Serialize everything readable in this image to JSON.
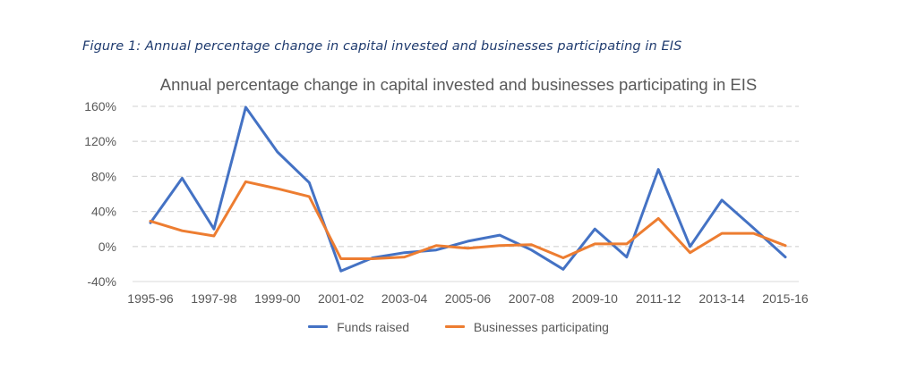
{
  "figure_caption": "Figure 1: Annual percentage change in capital invested and businesses participating in EIS",
  "chart_data": {
    "type": "line",
    "title": "Annual percentage change in capital invested and businesses participating in EIS",
    "xlabel": "",
    "ylabel": "",
    "ylim": [
      -40,
      160
    ],
    "yticks": [
      -40,
      0,
      40,
      80,
      120,
      160
    ],
    "ytick_labels": [
      "-40%",
      "0%",
      "40%",
      "80%",
      "120%",
      "160%"
    ],
    "grid": "horizontal dashed",
    "legend_position": "bottom",
    "categories": [
      "1995-96",
      "1996-97",
      "1997-98",
      "1998-99",
      "1999-00",
      "2000-01",
      "2001-02",
      "2002-03",
      "2003-04",
      "2004-05",
      "2005-06",
      "2006-07",
      "2007-08",
      "2008-09",
      "2009-10",
      "2010-11",
      "2011-12",
      "2012-13",
      "2013-14",
      "2014-15",
      "2015-16"
    ],
    "xtick_labels_shown": [
      "1995-96",
      "1997-98",
      "1999-00",
      "2001-02",
      "2003-04",
      "2005-06",
      "2007-08",
      "2009-10",
      "2011-12",
      "2013-14",
      "2015-16"
    ],
    "series": [
      {
        "name": "Funds raised",
        "color": "#4472c4",
        "values": [
          27,
          78,
          20,
          159,
          108,
          73,
          -28,
          -13,
          -7,
          -4,
          6,
          13,
          -4,
          -26,
          20,
          -12,
          88,
          0,
          53,
          21,
          -12
        ]
      },
      {
        "name": "Businesses participating",
        "color": "#ed7d31",
        "values": [
          29,
          18,
          12,
          74,
          66,
          57,
          -14,
          -14,
          -12,
          1,
          -2,
          1,
          2,
          -13,
          3,
          3,
          32,
          -7,
          15,
          15,
          1
        ]
      }
    ]
  }
}
